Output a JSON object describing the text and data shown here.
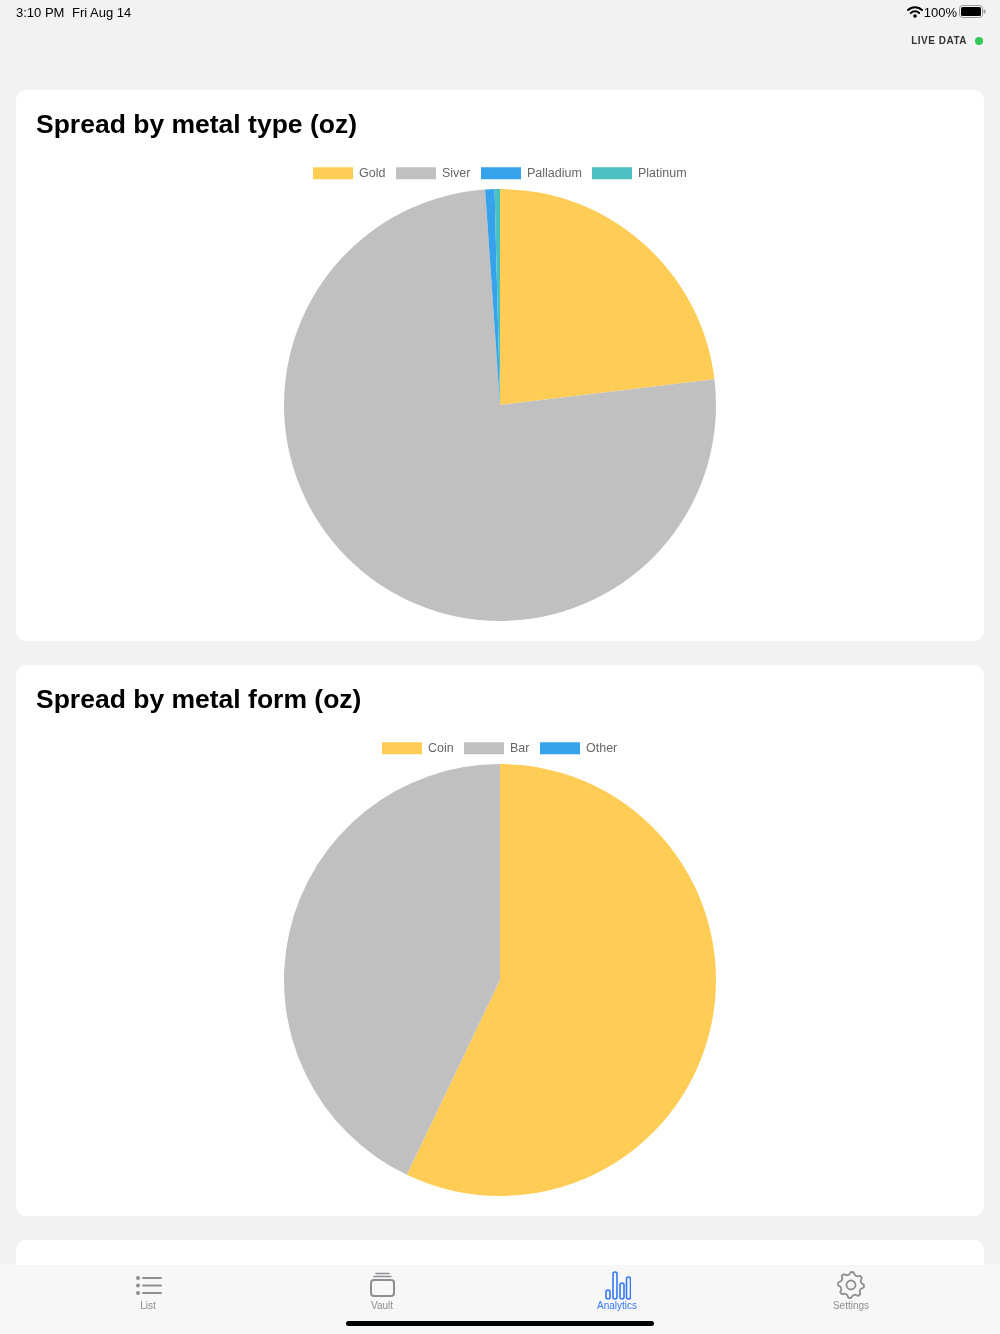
{
  "chart_data": [
    {
      "type": "other",
      "annotations": [
        "3:10 PM",
        "Fri Aug 14",
        "100%",
        "LIVE DATA"
      ]
    },
    {
      "type": "pie",
      "title": "Spread by metal type (oz)",
      "categories": [
        "Gold",
        "Siver",
        "Palladium",
        "Platinum"
      ],
      "values": [
        23.1,
        75.8,
        0.7,
        0.4
      ],
      "colors": [
        "#ffcd56",
        "#c0c0c0",
        "#36a2eb",
        "#4bc0c0"
      ],
      "legend": "top"
    },
    {
      "type": "pie",
      "title": "Spread by metal form (oz)",
      "categories": [
        "Coin",
        "Bar",
        "Other"
      ],
      "values": [
        57.1,
        42.9,
        0
      ],
      "colors": [
        "#ffcd56",
        "#c0c0c0",
        "#36a2eb"
      ],
      "legend": "top"
    },
    {
      "type": "other",
      "annotations": [
        "List",
        "Vault",
        "Analytics",
        "Settings"
      ]
    }
  ]
}
